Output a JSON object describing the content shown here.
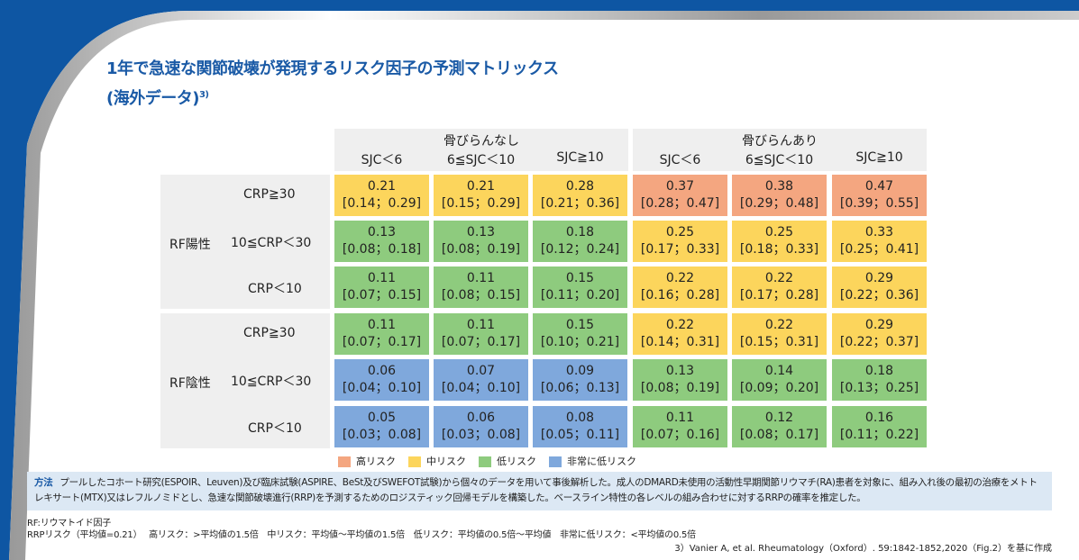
{
  "title": {
    "line1": "1年で急速な関節破壊が発現するリスク因子の予測マトリックス",
    "line2": "(海外データ)",
    "sup": "3)"
  },
  "groups": [
    "骨びらんなし",
    "骨びらんあり"
  ],
  "columns": [
    "SJC＜6",
    "6≦SJC＜10",
    "SJC≧10",
    "SJC＜6",
    "6≦SJC＜10",
    "SJC≧10"
  ],
  "rf_groups": [
    "RF陽性",
    "RF陰性"
  ],
  "crp_rows": [
    "CRP≧30",
    "10≦CRP＜30",
    "CRP＜10",
    "CRP≧30",
    "10≦CRP＜30",
    "CRP＜10"
  ],
  "colors": {
    "high": "#f4a680",
    "mid": "#fcd55c",
    "low": "#8ecb7e",
    "vlow": "#7fa8dc"
  },
  "cells": [
    [
      {
        "v": "0.21",
        "ci": "[0.14；0.29]",
        "r": "mid"
      },
      {
        "v": "0.21",
        "ci": "[0.15；0.29]",
        "r": "mid"
      },
      {
        "v": "0.28",
        "ci": "[0.21；0.36]",
        "r": "mid"
      },
      {
        "v": "0.37",
        "ci": "[0.28；0.47]",
        "r": "high"
      },
      {
        "v": "0.38",
        "ci": "[0.29；0.48]",
        "r": "high"
      },
      {
        "v": "0.47",
        "ci": "[0.39；0.55]",
        "r": "high"
      }
    ],
    [
      {
        "v": "0.13",
        "ci": "[0.08；0.18]",
        "r": "low"
      },
      {
        "v": "0.13",
        "ci": "[0.08；0.19]",
        "r": "low"
      },
      {
        "v": "0.18",
        "ci": "[0.12；0.24]",
        "r": "low"
      },
      {
        "v": "0.25",
        "ci": "[0.17；0.33]",
        "r": "mid"
      },
      {
        "v": "0.25",
        "ci": "[0.18；0.33]",
        "r": "mid"
      },
      {
        "v": "0.33",
        "ci": "[0.25；0.41]",
        "r": "mid"
      }
    ],
    [
      {
        "v": "0.11",
        "ci": "[0.07；0.15]",
        "r": "low"
      },
      {
        "v": "0.11",
        "ci": "[0.08；0.15]",
        "r": "low"
      },
      {
        "v": "0.15",
        "ci": "[0.11；0.20]",
        "r": "low"
      },
      {
        "v": "0.22",
        "ci": "[0.16；0.28]",
        "r": "mid"
      },
      {
        "v": "0.22",
        "ci": "[0.17；0.28]",
        "r": "mid"
      },
      {
        "v": "0.29",
        "ci": "[0.22；0.36]",
        "r": "mid"
      }
    ],
    [
      {
        "v": "0.11",
        "ci": "[0.07；0.17]",
        "r": "low"
      },
      {
        "v": "0.11",
        "ci": "[0.07；0.17]",
        "r": "low"
      },
      {
        "v": "0.15",
        "ci": "[0.10；0.21]",
        "r": "low"
      },
      {
        "v": "0.22",
        "ci": "[0.14；0.31]",
        "r": "mid"
      },
      {
        "v": "0.22",
        "ci": "[0.15；0.31]",
        "r": "mid"
      },
      {
        "v": "0.29",
        "ci": "[0.22；0.37]",
        "r": "mid"
      }
    ],
    [
      {
        "v": "0.06",
        "ci": "[0.04；0.10]",
        "r": "vlow"
      },
      {
        "v": "0.07",
        "ci": "[0.04；0.10]",
        "r": "vlow"
      },
      {
        "v": "0.09",
        "ci": "[0.06；0.13]",
        "r": "vlow"
      },
      {
        "v": "0.13",
        "ci": "[0.08；0.19]",
        "r": "low"
      },
      {
        "v": "0.14",
        "ci": "[0.09；0.20]",
        "r": "low"
      },
      {
        "v": "0.18",
        "ci": "[0.13；0.25]",
        "r": "low"
      }
    ],
    [
      {
        "v": "0.05",
        "ci": "[0.03；0.08]",
        "r": "vlow"
      },
      {
        "v": "0.06",
        "ci": "[0.03；0.08]",
        "r": "vlow"
      },
      {
        "v": "0.08",
        "ci": "[0.05；0.11]",
        "r": "vlow"
      },
      {
        "v": "0.11",
        "ci": "[0.07；0.16]",
        "r": "low"
      },
      {
        "v": "0.12",
        "ci": "[0.08；0.17]",
        "r": "low"
      },
      {
        "v": "0.16",
        "ci": "[0.11；0.22]",
        "r": "low"
      }
    ]
  ],
  "legend": [
    {
      "key": "high",
      "label": "高リスク"
    },
    {
      "key": "mid",
      "label": "中リスク"
    },
    {
      "key": "low",
      "label": "低リスク"
    },
    {
      "key": "vlow",
      "label": "非常に低リスク"
    }
  ],
  "method": {
    "label": "方法",
    "text": "プールしたコホート研究(ESPOIR、Leuven)及び臨床試験(ASPIRE、BeSt及びSWEFOT試験)から個々のデータを用いて事後解析した。成人のDMARD未使用の活動性早期関節リウマチ(RA)患者を対象に、組み入れ後の最初の治療をメトトレキサート(MTX)又はレフルノミドとし、急速な関節破壊進行(RRP)を予測するためのロジスティック回帰モデルを構築した。ベースライン特性の各レベルの組み合わせに対するRRPの確率を推定した。"
  },
  "notes": [
    "RF:リウマトイド因子",
    "RRPリスク（平均値=0.21）　 高リスク：>平均値の1.5倍　中リスク：平均値～平均値の1.5倍　低リスク：平均値の0.5倍～平均値　非常に低リスク：<平均値の0.5倍"
  ],
  "reference": "3）Vanier A, et al. Rheumatology（Oxford）. 59:1842-1852,2020（Fig.2）を基に作成"
}
